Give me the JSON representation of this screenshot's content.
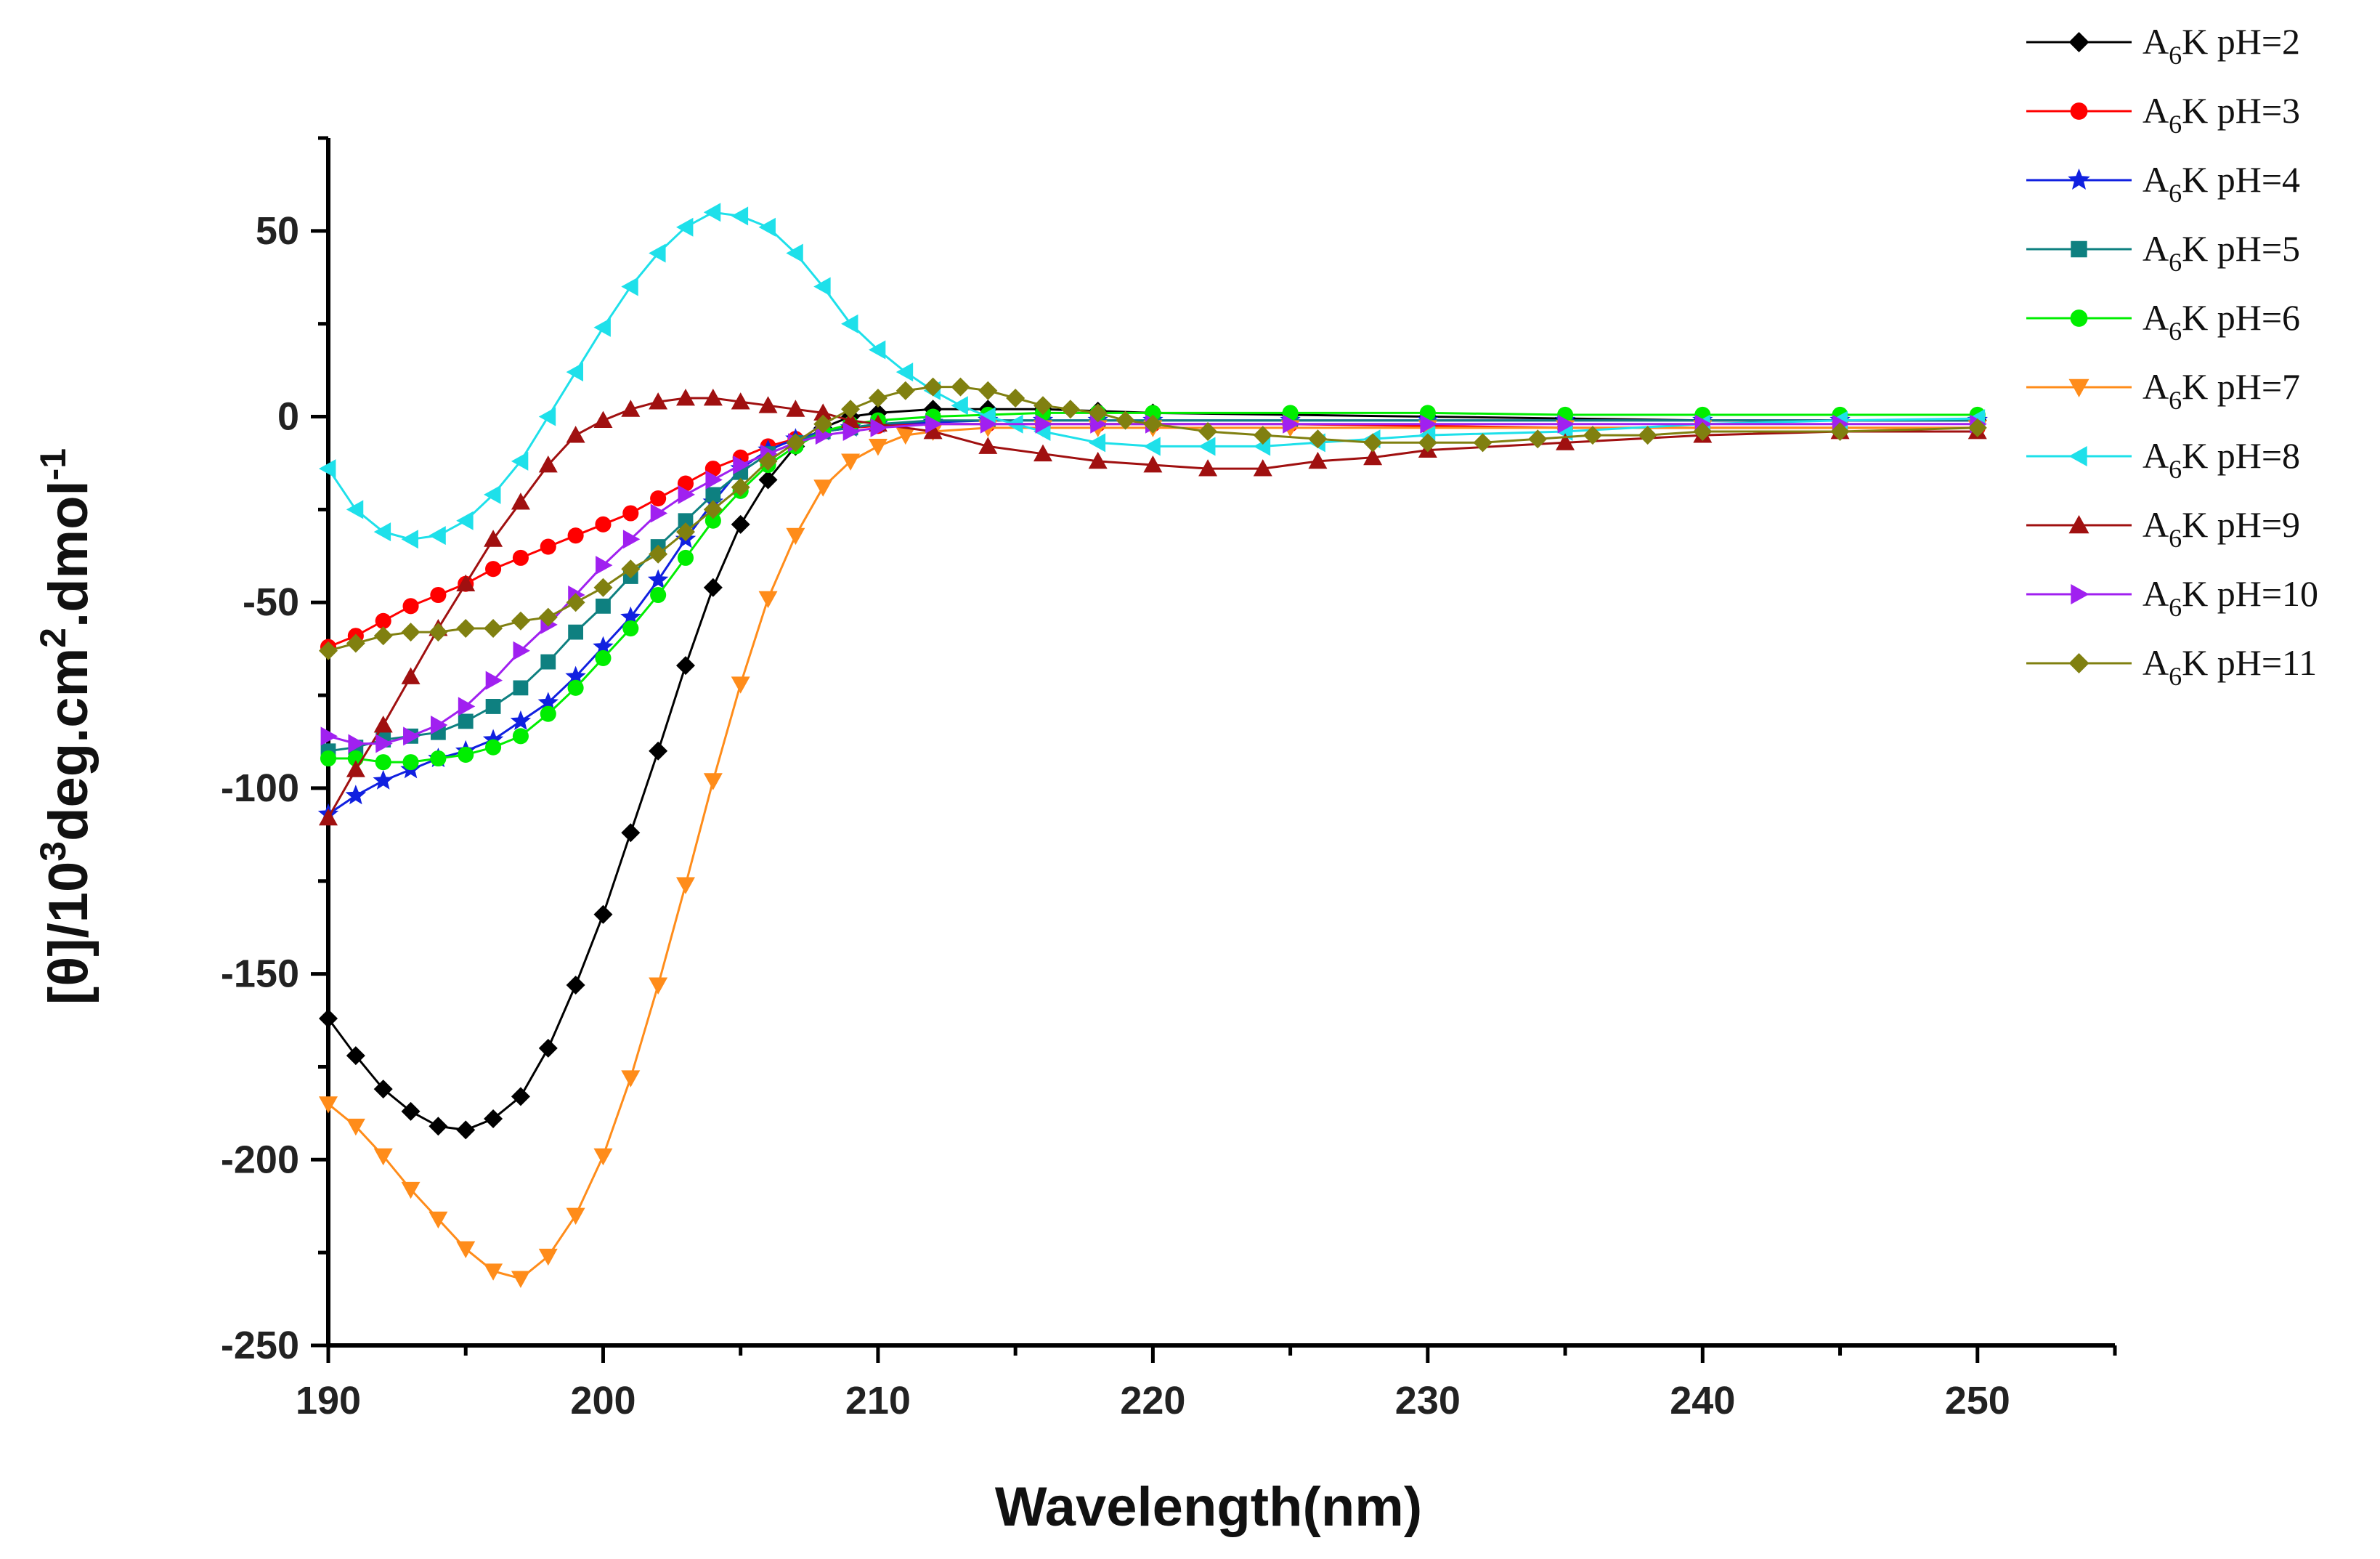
{
  "chart_data": {
    "type": "line",
    "xlabel": "Wavelength(nm)",
    "ylabel": {
      "prefix": "[θ]/10",
      "exp1": "3",
      "mid": "deg.cm",
      "exp2": "2",
      "suffix": ".dmol",
      "exp3": "-1"
    },
    "xlim": [
      190,
      255
    ],
    "ylim": [
      -250,
      75
    ],
    "xticks": [
      190,
      200,
      210,
      220,
      230,
      240,
      250
    ],
    "yticks": [
      50,
      0,
      -50,
      -100,
      -150,
      -200,
      -250
    ],
    "legend_position": "top-right",
    "series": [
      {
        "name": "A6K pH=2",
        "base": "A",
        "sub": "6",
        "rest": "K pH=2",
        "color": "#000000",
        "marker": "diamond",
        "x": [
          190,
          191,
          192,
          193,
          194,
          195,
          196,
          197,
          198,
          199,
          200,
          201,
          202,
          203,
          204,
          205,
          206,
          207,
          208,
          209,
          210,
          212,
          214,
          216,
          218,
          220,
          225,
          230,
          235,
          240,
          245,
          250
        ],
        "y": [
          -162,
          -172,
          -181,
          -187,
          -191,
          -192,
          -189,
          -183,
          -170,
          -153,
          -134,
          -112,
          -90,
          -67,
          -46,
          -29,
          -17,
          -8,
          -3,
          0,
          1,
          2,
          2,
          2,
          1.5,
          1,
          0.5,
          0,
          -0.5,
          -1,
          -1,
          -1
        ]
      },
      {
        "name": "A6K pH=3",
        "base": "A",
        "sub": "6",
        "rest": "K pH=3",
        "color": "#ff0000",
        "marker": "circle",
        "x": [
          190,
          191,
          192,
          193,
          194,
          195,
          196,
          197,
          198,
          199,
          200,
          201,
          202,
          203,
          204,
          205,
          206,
          207,
          208,
          209,
          210,
          212,
          214,
          216,
          218,
          220,
          225,
          230,
          235,
          240,
          245,
          250
        ],
        "y": [
          -62,
          -59,
          -55,
          -51,
          -48,
          -45,
          -41,
          -38,
          -35,
          -32,
          -29,
          -26,
          -22,
          -18,
          -14,
          -11,
          -8,
          -6,
          -4,
          -3,
          -2.5,
          -2,
          -2,
          -2,
          -2,
          -2,
          -2,
          -2.5,
          -3,
          -3,
          -3,
          -3
        ]
      },
      {
        "name": "A6K pH=4",
        "base": "A",
        "sub": "6",
        "rest": "K pH=4",
        "color": "#1020e0",
        "marker": "star",
        "x": [
          190,
          191,
          192,
          193,
          194,
          195,
          196,
          197,
          198,
          199,
          200,
          201,
          202,
          203,
          204,
          205,
          206,
          207,
          208,
          209,
          210,
          212,
          214,
          216,
          218,
          220,
          225,
          230,
          235,
          240,
          245,
          250
        ],
        "y": [
          -107,
          -102,
          -98,
          -95,
          -92,
          -90,
          -87,
          -82,
          -77,
          -70,
          -62,
          -54,
          -44,
          -33,
          -23,
          -14,
          -9,
          -6,
          -4,
          -3,
          -2,
          -1.5,
          -1,
          -1,
          -1,
          -1,
          -1,
          -1,
          -1,
          -1,
          -1,
          -1
        ]
      },
      {
        "name": "A6K pH=5",
        "base": "A",
        "sub": "6",
        "rest": "K pH=5",
        "color": "#0e8080",
        "marker": "square",
        "x": [
          190,
          191,
          192,
          193,
          194,
          195,
          196,
          197,
          198,
          199,
          200,
          201,
          202,
          203,
          204,
          205,
          206,
          207,
          208,
          209,
          210,
          212,
          214,
          216,
          218,
          220,
          225,
          230,
          235,
          240,
          245,
          250
        ],
        "y": [
          -90,
          -89,
          -87,
          -86,
          -85,
          -82,
          -78,
          -73,
          -66,
          -58,
          -51,
          -43,
          -35,
          -28,
          -21,
          -15,
          -10,
          -7,
          -4,
          -3,
          -2,
          -1,
          -1,
          -1,
          -1,
          -1,
          -1,
          -1,
          -1,
          -1,
          -1,
          -1
        ]
      },
      {
        "name": "A6K pH=6",
        "base": "A",
        "sub": "6",
        "rest": "K pH=6",
        "color": "#00ee00",
        "marker": "circle",
        "x": [
          190,
          191,
          192,
          193,
          194,
          195,
          196,
          197,
          198,
          199,
          200,
          201,
          202,
          203,
          204,
          205,
          206,
          207,
          208,
          209,
          210,
          212,
          214,
          216,
          218,
          220,
          225,
          230,
          235,
          240,
          245,
          250
        ],
        "y": [
          -92,
          -92,
          -93,
          -93,
          -92,
          -91,
          -89,
          -86,
          -80,
          -73,
          -65,
          -57,
          -48,
          -38,
          -28,
          -20,
          -13,
          -8,
          -4,
          -2,
          -1,
          0,
          0.5,
          1,
          1,
          1,
          1,
          1,
          0.5,
          0.5,
          0.5,
          0.5
        ]
      },
      {
        "name": "A6K pH=7",
        "base": "A",
        "sub": "6",
        "rest": "K pH=7",
        "color": "#ff8c1a",
        "marker": "triangle-down",
        "x": [
          190,
          191,
          192,
          193,
          194,
          195,
          196,
          197,
          198,
          199,
          200,
          201,
          202,
          203,
          204,
          205,
          206,
          207,
          208,
          209,
          210,
          211,
          212,
          214,
          216,
          218,
          220,
          225,
          230,
          235,
          240,
          245,
          250
        ],
        "y": [
          -185,
          -191,
          -199,
          -208,
          -216,
          -224,
          -230,
          -232,
          -226,
          -215,
          -199,
          -178,
          -153,
          -126,
          -98,
          -72,
          -49,
          -32,
          -19,
          -12,
          -8,
          -5,
          -4,
          -3,
          -3,
          -3,
          -3,
          -3,
          -3,
          -3,
          -3,
          -3,
          -3
        ]
      },
      {
        "name": "A6K pH=8",
        "base": "A",
        "sub": "6",
        "rest": "K pH=8",
        "color": "#1ee0ea",
        "marker": "triangle-left",
        "x": [
          190,
          191,
          192,
          193,
          194,
          195,
          196,
          197,
          198,
          199,
          200,
          201,
          202,
          203,
          204,
          205,
          206,
          207,
          208,
          209,
          210,
          211,
          212,
          213,
          214,
          215,
          216,
          218,
          220,
          222,
          224,
          226,
          228,
          230,
          235,
          240,
          245,
          250
        ],
        "y": [
          -14,
          -25,
          -31,
          -33,
          -32,
          -28,
          -21,
          -12,
          0,
          12,
          24,
          35,
          44,
          51,
          55,
          54,
          51,
          44,
          35,
          25,
          18,
          12,
          7,
          3,
          0,
          -2,
          -4,
          -7,
          -8,
          -8,
          -8,
          -7,
          -6,
          -5,
          -4,
          -2,
          -1,
          -0.5
        ]
      },
      {
        "name": "A6K pH=9",
        "base": "A",
        "sub": "6",
        "rest": "K pH=9",
        "color": "#a01010",
        "marker": "triangle-up",
        "x": [
          190,
          191,
          192,
          193,
          194,
          195,
          196,
          197,
          198,
          199,
          200,
          201,
          202,
          203,
          204,
          205,
          206,
          207,
          208,
          209,
          210,
          212,
          214,
          216,
          218,
          220,
          222,
          224,
          226,
          228,
          230,
          235,
          240,
          245,
          250
        ],
        "y": [
          -108,
          -95,
          -83,
          -70,
          -57,
          -45,
          -33,
          -23,
          -13,
          -5,
          -1,
          2,
          4,
          5,
          5,
          4,
          3,
          2,
          1,
          -1,
          -2,
          -4,
          -8,
          -10,
          -12,
          -13,
          -14,
          -14,
          -12,
          -11,
          -9,
          -7,
          -5,
          -4,
          -4
        ]
      },
      {
        "name": "A6K pH=10",
        "base": "A",
        "sub": "6",
        "rest": "K pH=10",
        "color": "#a020f0",
        "marker": "triangle-right",
        "x": [
          190,
          191,
          192,
          193,
          194,
          195,
          196,
          197,
          198,
          199,
          200,
          201,
          202,
          203,
          204,
          205,
          206,
          207,
          208,
          209,
          210,
          212,
          214,
          216,
          218,
          220,
          225,
          230,
          235,
          240,
          245,
          250
        ],
        "y": [
          -86,
          -88,
          -88,
          -86,
          -83,
          -78,
          -71,
          -63,
          -56,
          -48,
          -40,
          -33,
          -26,
          -21,
          -17,
          -13,
          -10,
          -7,
          -5,
          -4,
          -3,
          -2,
          -2,
          -2,
          -2,
          -2,
          -2,
          -2,
          -2,
          -2,
          -2,
          -2
        ]
      },
      {
        "name": "A6K pH=11",
        "base": "A",
        "sub": "6",
        "rest": "K pH=11",
        "color": "#808010",
        "marker": "diamond",
        "x": [
          190,
          191,
          192,
          193,
          194,
          195,
          196,
          197,
          198,
          199,
          200,
          201,
          202,
          203,
          204,
          205,
          206,
          207,
          208,
          209,
          210,
          211,
          212,
          213,
          214,
          215,
          216,
          217,
          218,
          219,
          220,
          222,
          224,
          226,
          228,
          230,
          232,
          234,
          236,
          238,
          240,
          245,
          250
        ],
        "y": [
          -63,
          -61,
          -59,
          -58,
          -58,
          -57,
          -57,
          -55,
          -54,
          -50,
          -46,
          -41,
          -37,
          -31,
          -25,
          -19,
          -12,
          -7,
          -2,
          2,
          5,
          7,
          8,
          8,
          7,
          5,
          3,
          2,
          1,
          -1,
          -2,
          -4,
          -5,
          -6,
          -7,
          -7,
          -7,
          -6,
          -5,
          -5,
          -4,
          -4,
          -3
        ]
      }
    ]
  }
}
